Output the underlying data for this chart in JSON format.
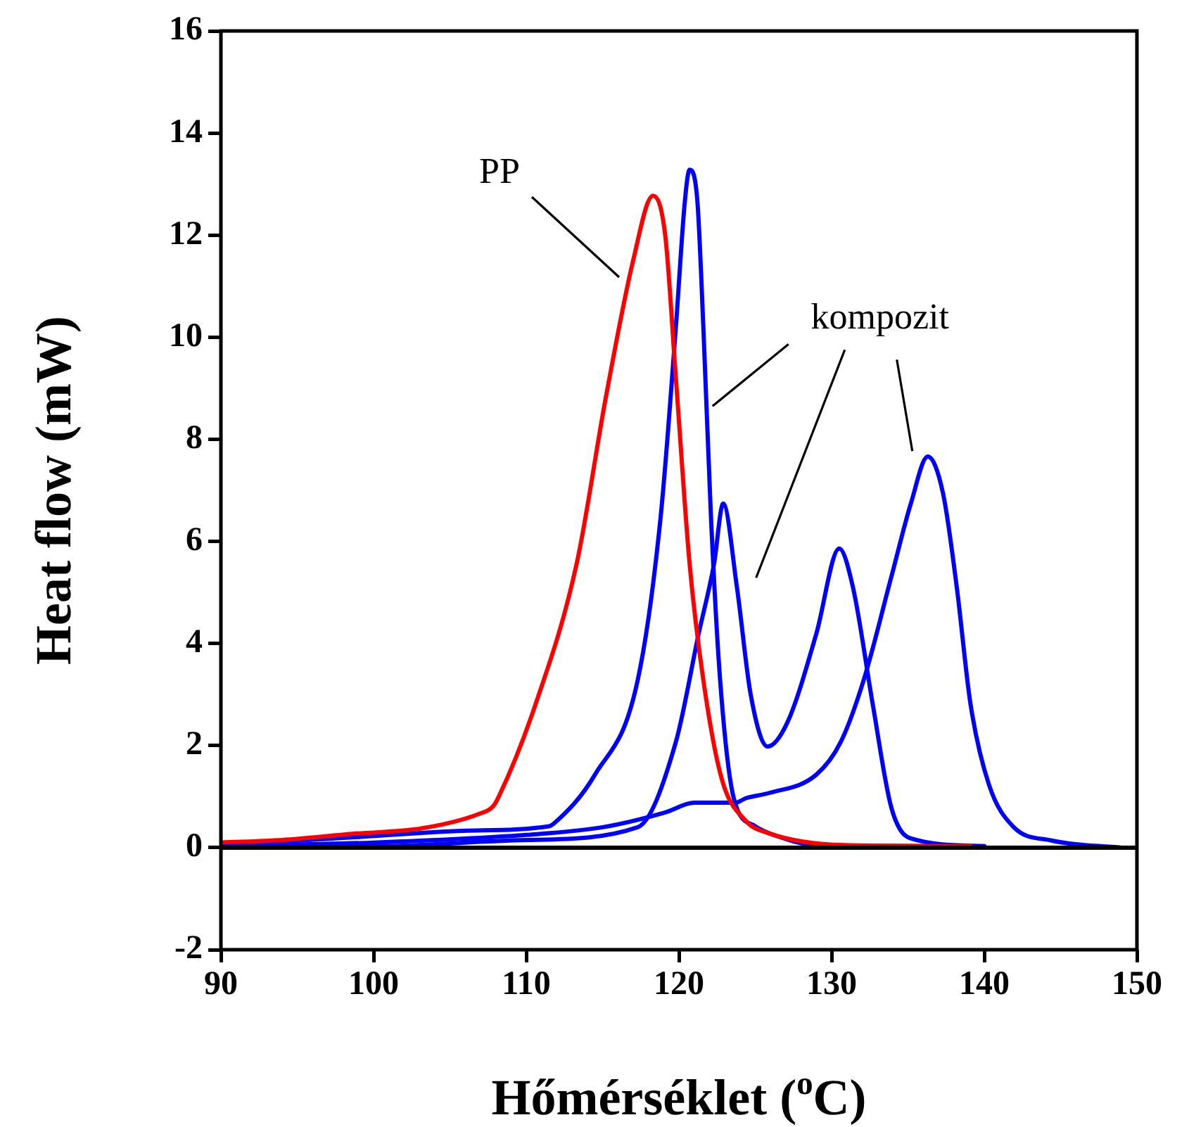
{
  "chart_data": {
    "type": "line",
    "xlabel": "Hőmérséklet ($^{o}$C)",
    "ylabel": "Heat flow (mW)",
    "xlim": [
      90,
      150
    ],
    "xticks": [
      90,
      100,
      110,
      120,
      130,
      140,
      150
    ],
    "ylim": [
      -2,
      16
    ],
    "yticks": [
      -2,
      0,
      2,
      4,
      6,
      8,
      10,
      12,
      14,
      16
    ],
    "grid": false,
    "legend": false,
    "marker": "none",
    "line_style": "solid",
    "ref_lines": [
      {
        "axis": "y",
        "value": 0,
        "color": "#000000"
      }
    ],
    "annotations": [
      "PP",
      {
        "text": "kompozit",
        "x": 122.2,
        "y": 8.65
      }
    ],
    "series": [
      {
        "color": "#ff0000",
        "x": [
          90,
          94,
          98.6,
          103.2,
          106.9,
          107.8,
          108.2,
          110.6,
          113.3,
          115.2,
          117.0,
          118.3,
          119.1,
          119.8,
          120.7,
          121.6,
          122.8,
          124.4,
          125.9,
          130.8,
          139.1
        ],
        "values": [
          0.1,
          0.15,
          0.27,
          0.38,
          0.66,
          0.8,
          1.0,
          2.8,
          5.56,
          8.8,
          11.5,
          12.77,
          12.0,
          9.2,
          5.56,
          3.28,
          1.35,
          0.52,
          0.28,
          0.05,
          0.03
        ]
      },
      {
        "color": "#0000ff",
        "x": [
          90,
          98.6,
          105.9,
          111.5,
          111.8,
          114.5,
          117.3,
          118.8,
          119.8,
          120.4,
          120.7,
          121.2,
          121.6,
          122.1,
          122.7,
          123.6,
          125.0,
          126.2,
          129.0,
          140.0
        ],
        "values": [
          0.05,
          0.2,
          0.33,
          0.42,
          0.47,
          1.43,
          3.28,
          6.47,
          10.2,
          12.7,
          13.28,
          12.7,
          10.2,
          6.47,
          3.28,
          0.96,
          0.42,
          0.25,
          0.05,
          0.03
        ]
      },
      {
        "color": "#0000ff",
        "x": [
          90,
          100,
          110,
          117.3,
          119.8,
          121.3,
          122.3,
          122.9,
          123.8,
          124.7,
          125.8,
          127.1,
          129.0,
          130.5,
          131.4,
          132.7,
          133.9,
          135.1,
          140.0
        ],
        "values": [
          0.05,
          0.03,
          0.15,
          0.4,
          2.07,
          4.2,
          5.56,
          6.74,
          5.1,
          3.0,
          1.98,
          2.45,
          4.19,
          5.86,
          5.1,
          2.8,
          0.8,
          0.19,
          0.03
        ]
      },
      {
        "color": "#0000ff",
        "x": [
          90,
          100,
          110,
          115,
          119.1,
          121.0,
          123.7,
          124.4,
          125.9,
          129.0,
          130.6,
          132.1,
          133.9,
          135.2,
          136.3,
          137.3,
          138.2,
          139.1,
          140.3,
          141.9,
          144.4,
          149.0
        ],
        "values": [
          0.03,
          0.1,
          0.25,
          0.4,
          0.69,
          0.88,
          0.88,
          0.97,
          1.07,
          1.43,
          2.07,
          3.28,
          5.29,
          6.75,
          7.66,
          6.94,
          5.1,
          2.81,
          1.24,
          0.41,
          0.14,
          0.0
        ]
      }
    ]
  }
}
